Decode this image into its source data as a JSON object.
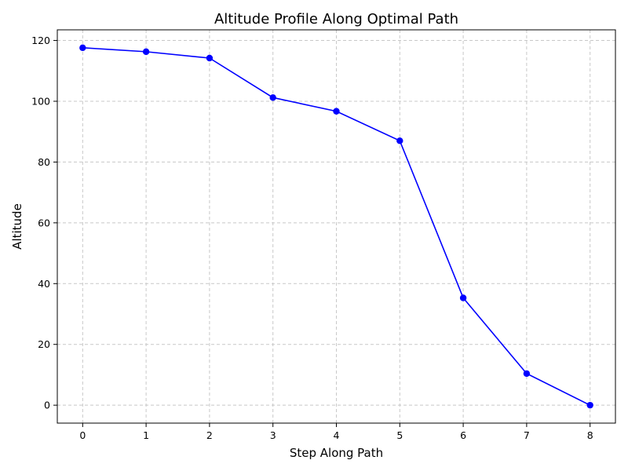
{
  "chart_data": {
    "type": "line",
    "title": "Altitude Profile Along Optimal Path",
    "xlabel": "Step Along Path",
    "ylabel": "Altitude",
    "x": [
      0,
      1,
      2,
      3,
      4,
      5,
      6,
      7,
      8
    ],
    "series": [
      {
        "values": [
          117.6,
          116.3,
          114.2,
          101.2,
          96.7,
          87.0,
          35.3,
          10.4,
          0.0
        ],
        "color": "#0000ff",
        "marker": "circle"
      }
    ],
    "xlim": [
      -0.4,
      8.4
    ],
    "ylim": [
      -5.9,
      123.5
    ],
    "xticks": [
      0,
      1,
      2,
      3,
      4,
      5,
      6,
      7,
      8
    ],
    "yticks": [
      0,
      20,
      40,
      60,
      80,
      100,
      120
    ],
    "grid": true,
    "grid_style": "dashed"
  }
}
